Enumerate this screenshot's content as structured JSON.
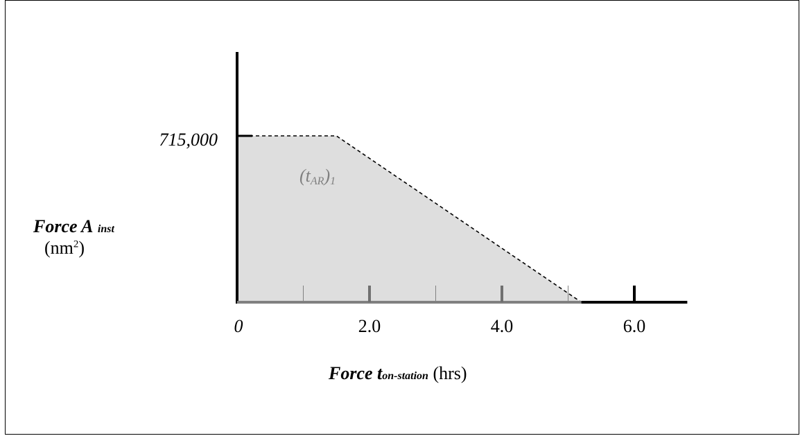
{
  "chart_data": {
    "type": "area",
    "y_label": {
      "main": "Force A",
      "subscript": "inst",
      "unit": "(nm",
      "unit_sup": "2",
      "unit_close": ")"
    },
    "x_label": {
      "main": "Force t",
      "subscript": "on-station",
      "unit": "(hrs)"
    },
    "y_tick_label": "715,000",
    "x_tick_labels": [
      {
        "value": 0,
        "text": "0"
      },
      {
        "value": 2.0,
        "text": "2.0"
      },
      {
        "value": 4.0,
        "text": "4.0"
      },
      {
        "value": 6.0,
        "text": "6.0"
      }
    ],
    "xlim": [
      0,
      6.8
    ],
    "ylim": [
      0,
      1075000
    ],
    "series": [
      {
        "x": [
          0,
          1.5,
          5.2
        ],
        "y": [
          715000,
          715000,
          0
        ],
        "fill": "#dedede",
        "line_style": "dashed",
        "annotation": {
          "main": "(t",
          "subscript_1": "AR",
          "mid": ")",
          "subscript_2": "1"
        }
      }
    ],
    "minor_ticks": [
      1.0,
      3.0,
      5.0
    ],
    "major_ticks_gray": [
      2.0,
      4.0
    ],
    "major_ticks_black": [
      6.0
    ],
    "grid": false
  }
}
